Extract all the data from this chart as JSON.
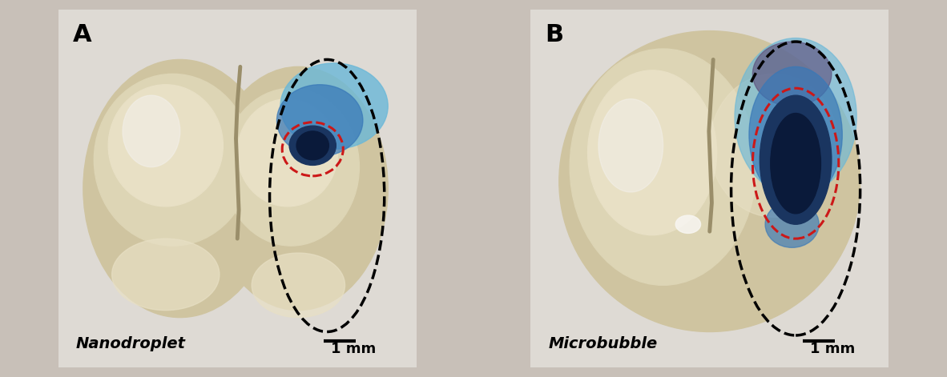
{
  "figure_width": 11.82,
  "figure_height": 4.71,
  "background_color": "#c8c0b8",
  "panel_A": {
    "label": "A",
    "label_fontsize": 22,
    "scale_bar_label": "1 mm",
    "italic_label": "Nanodroplet"
  },
  "panel_B": {
    "label": "B",
    "label_fontsize": 22,
    "scale_bar_label": "1 mm",
    "italic_label": "Microbubble"
  },
  "brain_color_base": "#cfc4a0",
  "brain_color_light": "#ddd5b5",
  "brain_color_lighter": "#e8e0c5",
  "white_highlight": "#f2efe8",
  "groove_color": "#9a8e6a",
  "blue_light": "#6ab8d8",
  "blue_mid": "#3878b8",
  "blue_dark": "#1a3560",
  "blue_darkest": "#0a1a3a",
  "purple_blue": "#5a4878",
  "red_ellipse_color": "#cc1818",
  "black_ellipse_color": "#000000",
  "bg_color": "#dedad4"
}
